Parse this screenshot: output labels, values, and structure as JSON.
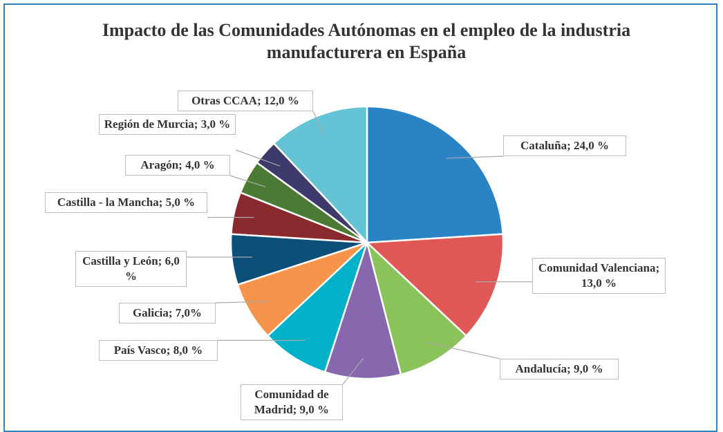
{
  "chart_data": {
    "type": "pie",
    "title": "Impacto de las Comunidades Autónomas en el empleo de la industria manufacturera en España",
    "categories": [
      "Cataluña",
      "Comunidad Valenciana",
      "Andalucía",
      "Comunidad de Madrid",
      "País Vasco",
      "Galicia",
      "Castilla y León",
      "Castilla - la Mancha",
      "Aragón",
      "Región de Murcia",
      "Otras CCAA"
    ],
    "values": [
      24,
      13,
      9,
      9,
      8,
      7,
      6,
      5,
      4,
      3,
      12
    ],
    "value_labels": [
      "Cataluña; 24,0 %",
      "Comunidad Valenciana; 13,0 %",
      "Andalucía; 9,0 %",
      "Comunidad de Madrid; 9,0 %",
      "País Vasco; 8,0 %",
      "Galicia; 7,0%",
      "Castilla y León; 6,0 %",
      "Castilla - la Mancha; 5,0 %",
      "Aragón; 4,0 %",
      "Región de Murcia; 3,0 %",
      "Otras CCAA; 12,0 %"
    ],
    "colors": [
      "#2a83c4",
      "#e05856",
      "#8bc35b",
      "#8767ad",
      "#00b1c9",
      "#f7944b",
      "#0c4f78",
      "#8a2a2f",
      "#4b7a34",
      "#3e3a6b",
      "#64c3d5"
    ]
  }
}
